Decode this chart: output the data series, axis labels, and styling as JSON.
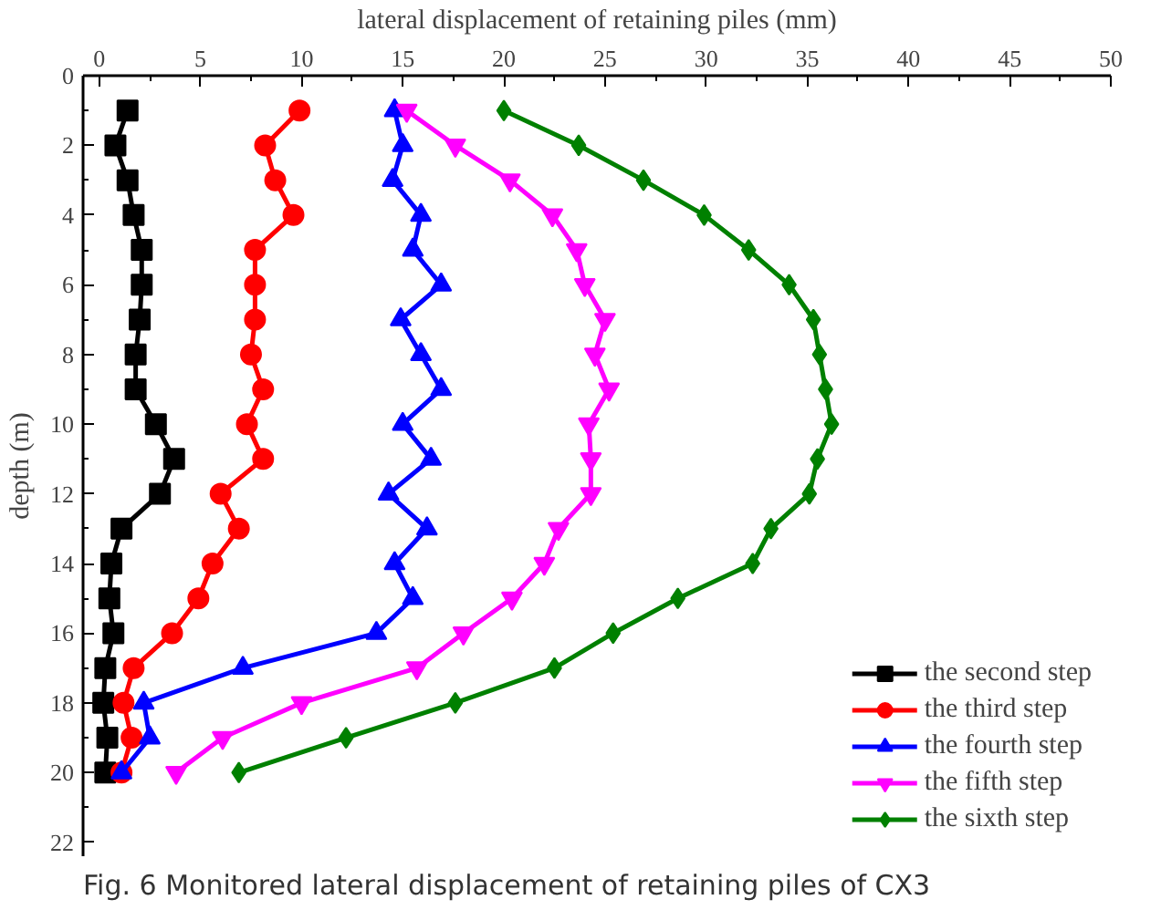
{
  "chart_data": {
    "type": "line",
    "xlabel": "lateral displacement of retaining piles (mm)",
    "ylabel": "depth (m)",
    "annotations": [
      "Fig. 6 Monitored lateral displacement of retaining piles of CX3"
    ],
    "xlim": [
      -0.8,
      50
    ],
    "xticks": [
      0,
      5,
      10,
      15,
      20,
      25,
      30,
      35,
      40,
      45,
      50
    ],
    "ylim": [
      22.4,
      0
    ],
    "yticks": [
      0,
      2,
      4,
      6,
      8,
      10,
      12,
      14,
      16,
      18,
      20,
      22
    ],
    "grid": false,
    "legend": "bottom right",
    "line_style": "solid",
    "series": [
      {
        "name": "the second step",
        "color": "#000000",
        "marker": "square",
        "x": [
          1.4,
          0.8,
          1.4,
          1.7,
          2.1,
          2.1,
          2.0,
          1.8,
          1.8,
          2.8,
          3.7,
          3.0,
          1.1,
          0.6,
          0.5,
          0.7,
          0.3,
          0.2,
          0.4,
          0.3
        ],
        "values": [
          1,
          2,
          3,
          4,
          5,
          6,
          7,
          8,
          9,
          10,
          11,
          12,
          13,
          14,
          15,
          16,
          17,
          18,
          19,
          20
        ]
      },
      {
        "name": "the third step",
        "color": "#ff0000",
        "marker": "circle",
        "x": [
          9.9,
          8.2,
          8.7,
          9.6,
          7.7,
          7.7,
          7.7,
          7.5,
          8.1,
          7.3,
          8.1,
          6.0,
          6.9,
          5.6,
          4.9,
          3.6,
          1.7,
          1.2,
          1.6,
          1.1
        ],
        "values": [
          1,
          2,
          3,
          4,
          5,
          6,
          7,
          8,
          9,
          10,
          11,
          12,
          13,
          14,
          15,
          16,
          17,
          18,
          19,
          20
        ]
      },
      {
        "name": "the fourth step",
        "color": "#0000ff",
        "marker": "triangle",
        "x": [
          14.6,
          15.0,
          14.5,
          15.9,
          15.5,
          16.9,
          14.9,
          15.9,
          16.9,
          15.0,
          16.4,
          14.3,
          16.2,
          14.6,
          15.5,
          13.7,
          7.1,
          2.2,
          2.5,
          1.1
        ],
        "values": [
          1,
          2,
          3,
          4,
          5,
          6,
          7,
          8,
          9,
          10,
          11,
          12,
          13,
          14,
          15,
          16,
          17,
          18,
          19,
          20
        ]
      },
      {
        "name": "the fifth step",
        "color": "#ff00ff",
        "marker": "triangle_down",
        "x": [
          15.2,
          17.6,
          20.3,
          22.4,
          23.6,
          24.0,
          25.0,
          24.5,
          25.2,
          24.2,
          24.3,
          24.3,
          22.7,
          22.0,
          20.4,
          18.0,
          15.7,
          10.0,
          6.1,
          3.8
        ],
        "values": [
          1,
          2,
          3,
          4,
          5,
          6,
          7,
          8,
          9,
          10,
          11,
          12,
          13,
          14,
          15,
          16,
          17,
          18,
          19,
          20
        ]
      },
      {
        "name": "the sixth step",
        "color": "#008000",
        "marker": "diamond",
        "x": [
          20.0,
          23.7,
          26.9,
          29.9,
          32.1,
          34.1,
          35.3,
          35.6,
          35.9,
          36.2,
          35.5,
          35.1,
          33.2,
          32.3,
          28.6,
          25.4,
          22.5,
          17.6,
          12.2,
          6.9
        ],
        "values": [
          1,
          2,
          3,
          4,
          5,
          6,
          7,
          8,
          9,
          10,
          11,
          12,
          13,
          14,
          15,
          16,
          17,
          18,
          19,
          20
        ]
      }
    ]
  }
}
